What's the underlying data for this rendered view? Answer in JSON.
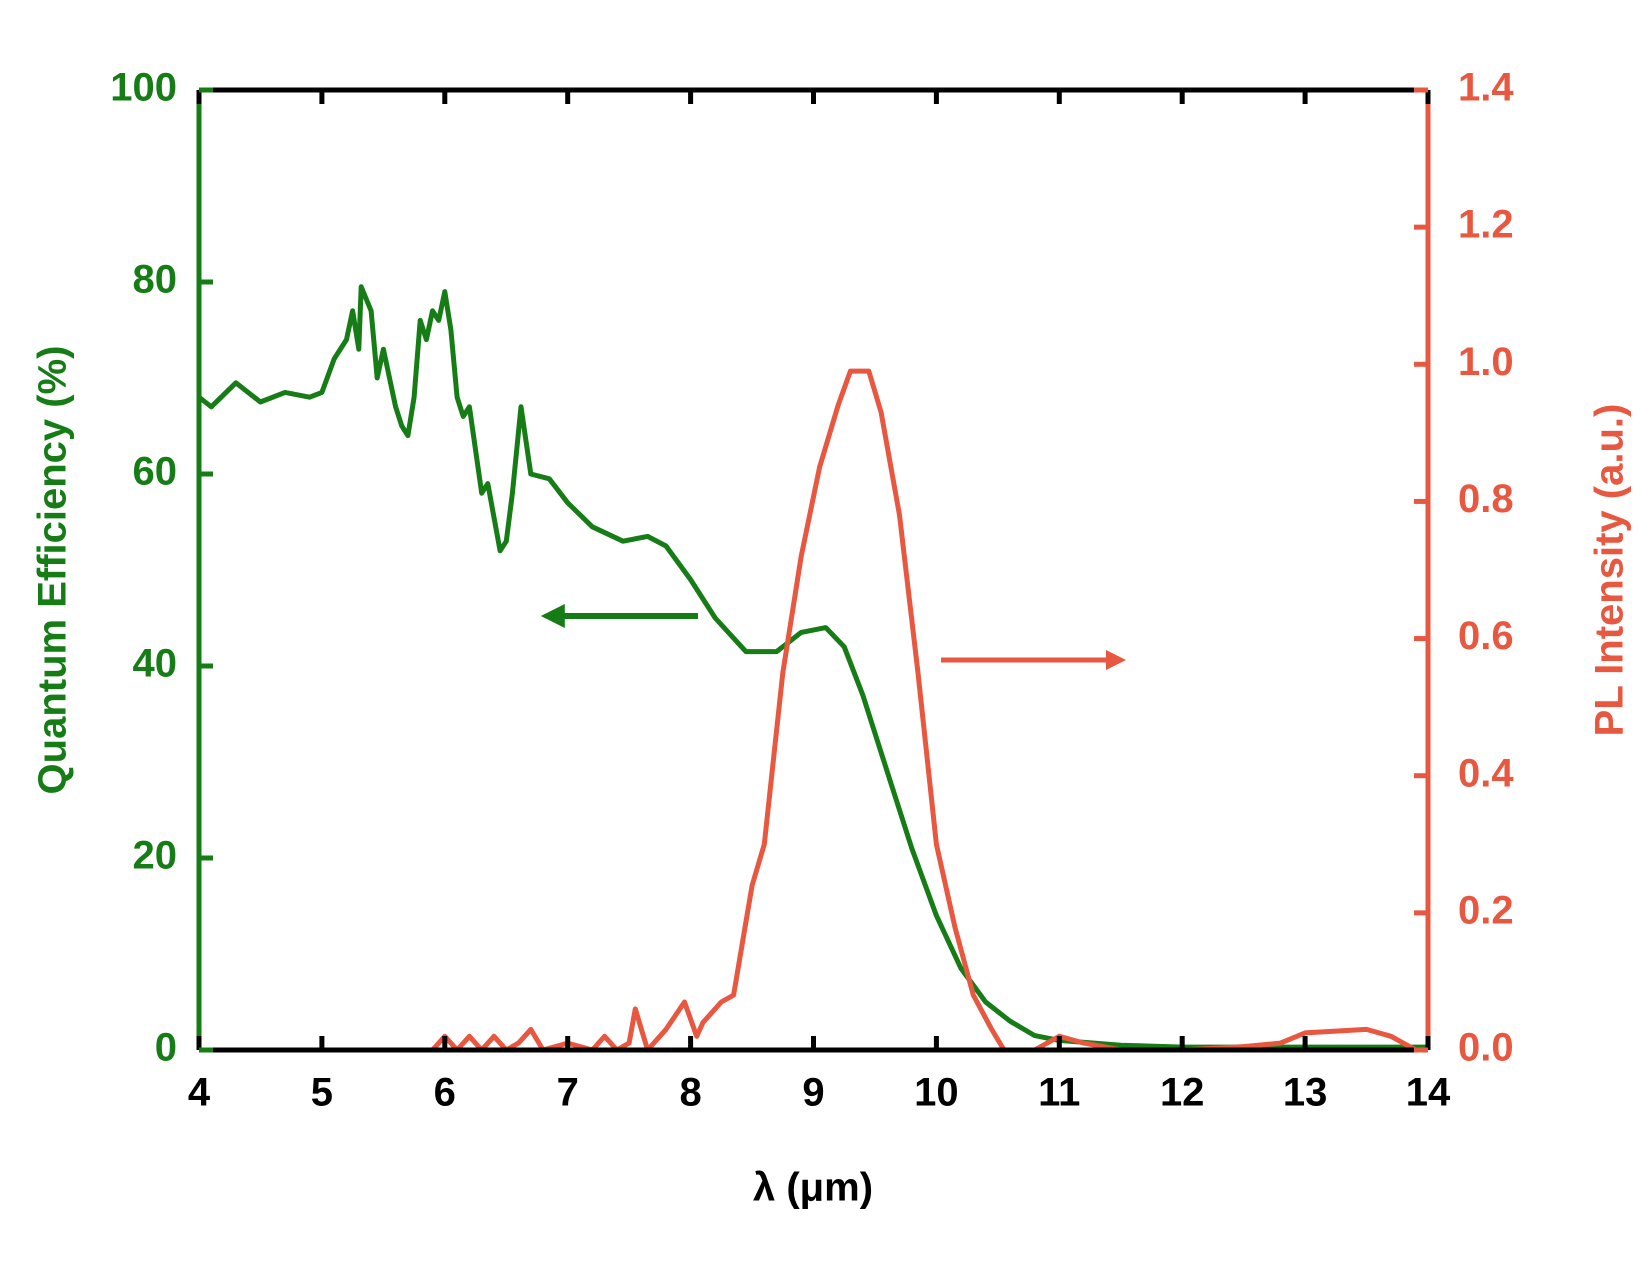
{
  "chart_data": {
    "type": "line",
    "xlabel": "λ (μm)",
    "ylabel": "Quantum Efficiency (%)",
    "y2label": "PL Intensity (a.u.)",
    "xlim": [
      4,
      14
    ],
    "xticks": [
      4,
      5,
      6,
      7,
      8,
      9,
      10,
      11,
      12,
      13,
      14
    ],
    "ylim": [
      0,
      100
    ],
    "yticks": [
      0,
      20,
      40,
      60,
      80,
      100
    ],
    "y2lim": [
      0,
      1.4
    ],
    "y2ticks": [
      {
        "value": 0,
        "label": "0.0"
      },
      0.2,
      0.4,
      0.6,
      0.8,
      {
        "value": 1,
        "label": "1.0"
      },
      1.2,
      1.4
    ],
    "axis_color": "#167d16",
    "axis2_color": "#e8573f",
    "series": [
      {
        "name": "Quantum Efficiency",
        "color": "#167d16",
        "axis": "y",
        "x": [
          4.0,
          4.1,
          4.3,
          4.5,
          4.7,
          4.9,
          5.0,
          5.1,
          5.2,
          5.25,
          5.3,
          5.32,
          5.4,
          5.45,
          5.5,
          5.55,
          5.6,
          5.65,
          5.7,
          5.75,
          5.8,
          5.85,
          5.9,
          5.95,
          6.0,
          6.05,
          6.1,
          6.15,
          6.2,
          6.3,
          6.35,
          6.45,
          6.5,
          6.55,
          6.62,
          6.7,
          6.85,
          7.0,
          7.2,
          7.45,
          7.65,
          7.8,
          8.0,
          8.2,
          8.45,
          8.7,
          8.9,
          9.1,
          9.25,
          9.4,
          9.6,
          9.8,
          10.0,
          10.2,
          10.4,
          10.6,
          10.8,
          11.0,
          11.5,
          12.0,
          13.0,
          14.0
        ],
        "values": [
          68,
          67,
          69.5,
          67.5,
          68.5,
          68,
          68.5,
          72,
          74,
          77,
          73,
          79.5,
          77,
          70,
          73,
          70,
          67,
          65,
          64,
          68,
          76,
          74,
          77,
          76,
          79,
          75,
          68,
          66,
          67,
          58,
          59,
          52,
          53,
          58,
          67,
          60,
          59.5,
          57,
          54.5,
          53,
          53.5,
          52.5,
          49,
          45,
          41.5,
          41.5,
          43.5,
          44,
          42,
          37,
          29,
          21,
          14,
          8.5,
          5,
          3,
          1.5,
          1,
          0.5,
          0.3,
          0.3,
          0.3
        ]
      },
      {
        "name": "PL Intensity",
        "color": "#e8573f",
        "axis": "y2",
        "x": [
          5.9,
          6.0,
          6.1,
          6.2,
          6.3,
          6.4,
          6.5,
          6.6,
          6.7,
          6.8,
          7.0,
          7.2,
          7.3,
          7.4,
          7.5,
          7.55,
          7.65,
          7.8,
          7.95,
          8.05,
          8.1,
          8.25,
          8.35,
          8.5,
          8.6,
          8.75,
          8.9,
          9.05,
          9.2,
          9.3,
          9.45,
          9.55,
          9.7,
          9.85,
          10.0,
          10.15,
          10.3,
          10.45,
          10.55,
          10.8,
          11.0,
          11.2,
          11.5,
          12.0,
          12.5,
          12.8,
          13.0,
          13.5,
          13.7,
          13.9
        ],
        "values": [
          0,
          0.02,
          0,
          0.02,
          0,
          0.02,
          0,
          0.01,
          0.03,
          0,
          0.01,
          0,
          0.02,
          0,
          0.01,
          0.06,
          0,
          0.03,
          0.07,
          0.02,
          0.04,
          0.07,
          0.08,
          0.24,
          0.3,
          0.55,
          0.72,
          0.85,
          0.94,
          0.99,
          0.99,
          0.93,
          0.78,
          0.55,
          0.3,
          0.18,
          0.08,
          0.03,
          0,
          0,
          0.02,
          0.01,
          0,
          0,
          0.005,
          0.01,
          0.025,
          0.03,
          0.02,
          0
        ]
      }
    ]
  }
}
